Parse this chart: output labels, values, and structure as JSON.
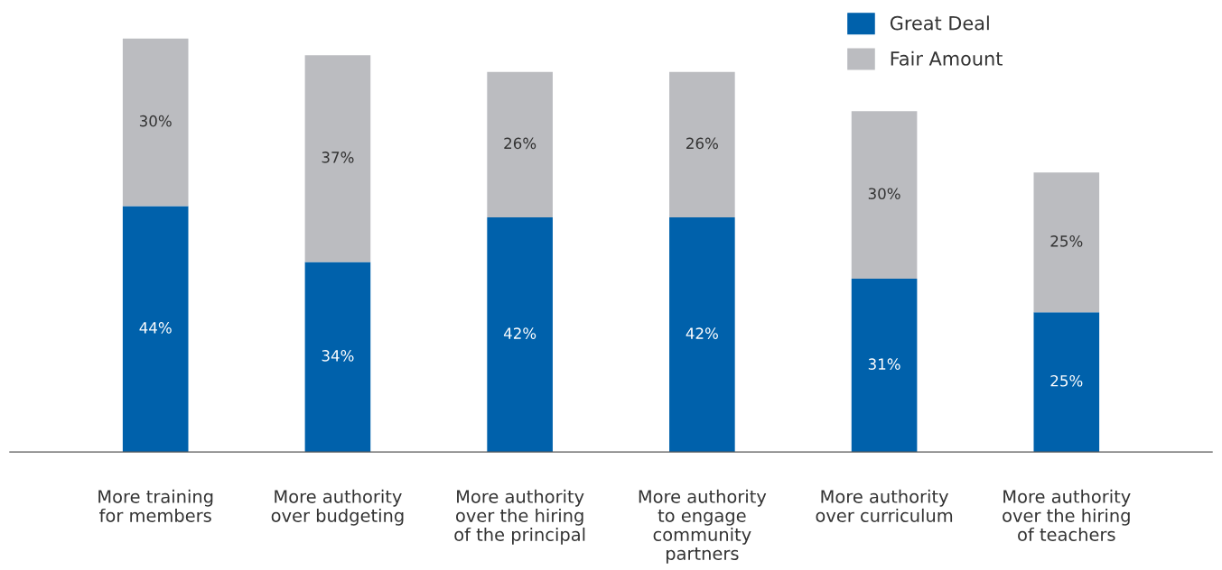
{
  "chart_data": {
    "type": "bar",
    "stacked": true,
    "legend": "top right",
    "grid": false,
    "categories": [
      "More training\nfor members",
      "More authority\nover budgeting",
      "More authority\nover the hiring\nof the principal",
      "More authority\nto engage\ncommunity\npartners",
      "More authority\nover curriculum",
      "More authority\nover the hiring\nof teachers"
    ],
    "series": [
      {
        "name": "Great Deal",
        "color": "#0061ab",
        "values": [
          44,
          34,
          42,
          42,
          31,
          25
        ],
        "value_labels": [
          "44%",
          "34%",
          "42%",
          "42%",
          "31%",
          "25%"
        ]
      },
      {
        "name": "Fair Amount",
        "color": "#bbbcc0",
        "values": [
          30,
          37,
          26,
          26,
          30,
          25
        ],
        "value_labels": [
          "30%",
          "37%",
          "26%",
          "26%",
          "30%",
          "25%"
        ]
      }
    ]
  }
}
